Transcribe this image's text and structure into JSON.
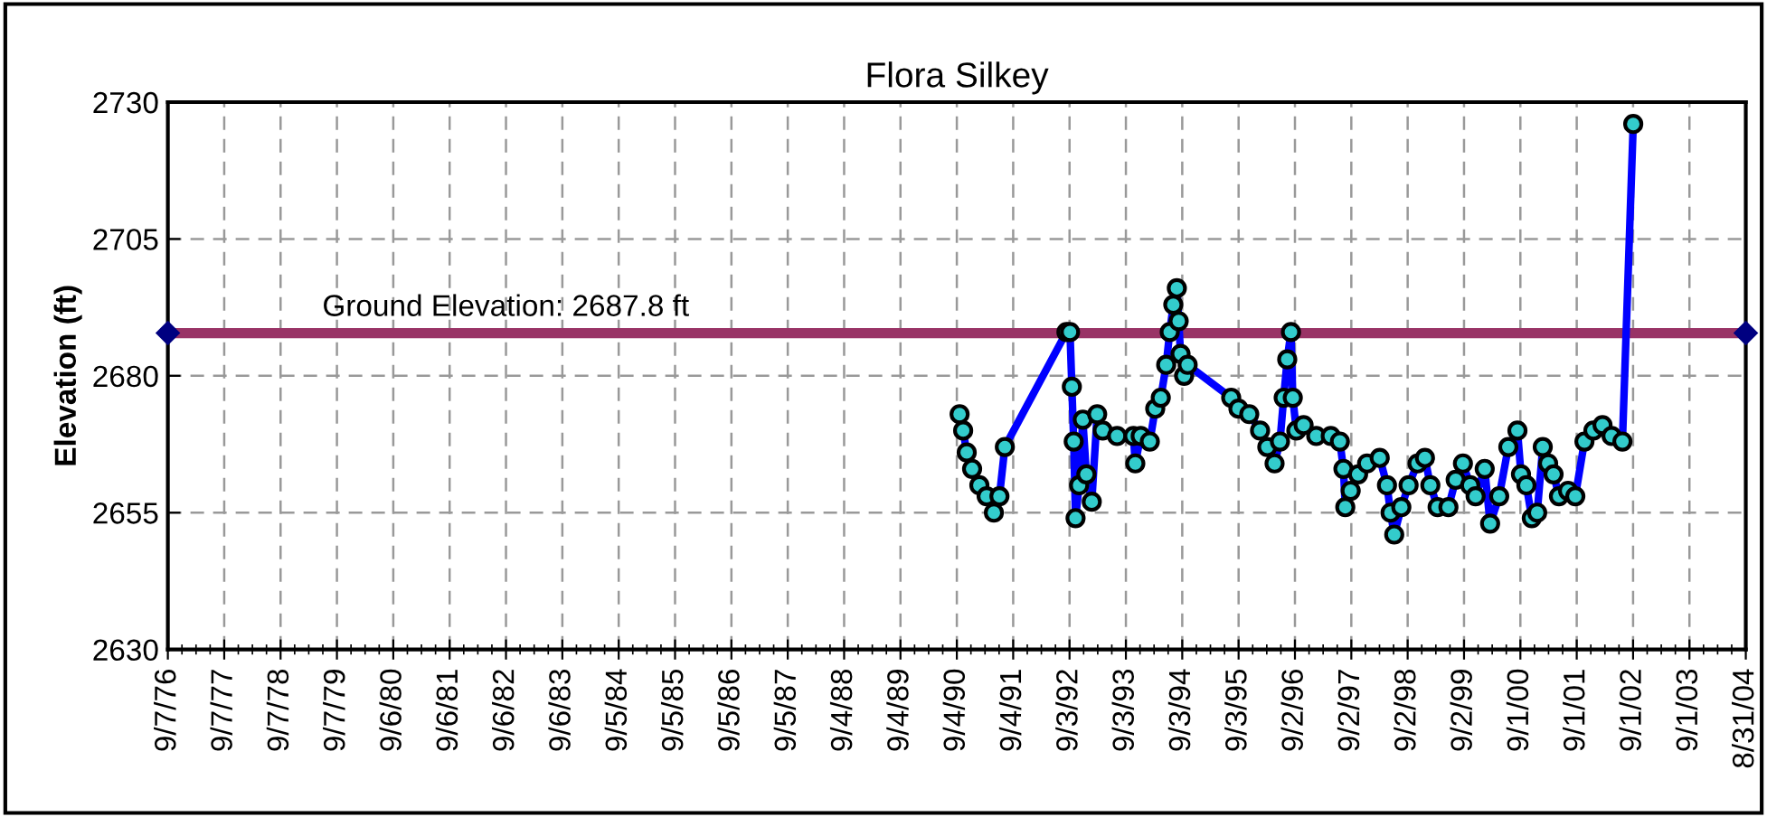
{
  "chart_data": {
    "type": "line",
    "title": "Flora Silkey",
    "ylabel": "Elevation (ft)",
    "xlim": [
      "1976-09-07",
      "2004-08-31"
    ],
    "ylim": [
      2630,
      2730
    ],
    "yticks": [
      2630,
      2655,
      2680,
      2705,
      2730
    ],
    "xticks": [
      {
        "value": "1976-09-07",
        "label": "9/7/76"
      },
      {
        "value": "1977-09-07",
        "label": "9/7/77"
      },
      {
        "value": "1978-09-07",
        "label": "9/7/78"
      },
      {
        "value": "1979-09-07",
        "label": "9/7/79"
      },
      {
        "value": "1980-09-06",
        "label": "9/6/80"
      },
      {
        "value": "1981-09-06",
        "label": "9/6/81"
      },
      {
        "value": "1982-09-06",
        "label": "9/6/82"
      },
      {
        "value": "1983-09-06",
        "label": "9/6/83"
      },
      {
        "value": "1984-09-05",
        "label": "9/5/84"
      },
      {
        "value": "1985-09-05",
        "label": "9/5/85"
      },
      {
        "value": "1986-09-05",
        "label": "9/5/86"
      },
      {
        "value": "1987-09-05",
        "label": "9/5/87"
      },
      {
        "value": "1988-09-04",
        "label": "9/4/88"
      },
      {
        "value": "1989-09-04",
        "label": "9/4/89"
      },
      {
        "value": "1990-09-04",
        "label": "9/4/90"
      },
      {
        "value": "1991-09-04",
        "label": "9/4/91"
      },
      {
        "value": "1992-09-03",
        "label": "9/3/92"
      },
      {
        "value": "1993-09-03",
        "label": "9/3/93"
      },
      {
        "value": "1994-09-03",
        "label": "9/3/94"
      },
      {
        "value": "1995-09-03",
        "label": "9/3/95"
      },
      {
        "value": "1996-09-02",
        "label": "9/2/96"
      },
      {
        "value": "1997-09-02",
        "label": "9/2/97"
      },
      {
        "value": "1998-09-02",
        "label": "9/2/98"
      },
      {
        "value": "1999-09-02",
        "label": "9/2/99"
      },
      {
        "value": "2000-09-01",
        "label": "9/1/00"
      },
      {
        "value": "2001-09-01",
        "label": "9/1/01"
      },
      {
        "value": "2002-09-01",
        "label": "9/1/02"
      },
      {
        "value": "2003-09-01",
        "label": "9/1/03"
      },
      {
        "value": "2004-08-31",
        "label": "8/31/04"
      }
    ],
    "grid": true,
    "series": [
      {
        "name": "Ground Elevation: 2687.8 ft",
        "color": "#993366",
        "marker": "diamond",
        "x": [
          "1976-09-07",
          "2004-08-31"
        ],
        "values": [
          2687.8,
          2687.8
        ]
      },
      {
        "color": "#0000ff",
        "marker": "circle",
        "x": [
          "1990-09-22",
          "1990-10-15",
          "1990-11-07",
          "1990-12-12",
          "1991-01-28",
          "1991-03-16",
          "1991-05-02",
          "1991-06-07",
          "1991-07-12",
          "1992-08-14",
          "1992-09-06",
          "1992-09-18",
          "1992-09-30",
          "1992-10-12",
          "1992-11-04",
          "1992-11-28",
          "1992-12-21",
          "1993-01-25",
          "1993-03-01",
          "1993-04-06",
          "1993-07-08",
          "1993-10-22",
          "1993-11-03",
          "1993-12-08",
          "1994-02-05",
          "1994-03-12",
          "1994-04-17",
          "1994-05-22",
          "1994-06-14",
          "1994-07-07",
          "1994-07-30",
          "1994-08-11",
          "1994-08-23",
          "1994-09-15",
          "1994-10-08",
          "1995-07-17",
          "1995-09-02",
          "1995-11-11",
          "1996-01-20",
          "1996-03-07",
          "1996-04-23",
          "1996-05-28",
          "1996-06-21",
          "1996-07-14",
          "1996-08-07",
          "1996-08-19",
          "1996-09-11",
          "1996-10-28",
          "1997-01-18",
          "1997-04-22",
          "1997-06-20",
          "1997-07-13",
          "1997-07-25",
          "1997-08-29",
          "1997-10-16",
          "1997-12-13",
          "1998-03-05",
          "1998-04-21",
          "1998-05-14",
          "1998-06-07",
          "1998-07-23",
          "1998-09-08",
          "1998-11-05",
          "1998-12-23",
          "1999-01-27",
          "1999-03-15",
          "1999-05-24",
          "1999-07-10",
          "1999-08-26",
          "1999-10-12",
          "1999-11-16",
          "2000-01-14",
          "2000-02-18",
          "2000-04-17",
          "2000-06-15",
          "2000-08-13",
          "2000-09-05",
          "2000-10-10",
          "2000-11-14",
          "2000-12-19",
          "2001-01-24",
          "2001-02-28",
          "2001-04-04",
          "2001-05-09",
          "2001-07-07",
          "2001-08-23",
          "2001-10-21",
          "2001-12-18",
          "2002-02-15",
          "2002-04-15",
          "2002-06-24",
          "2002-09-02"
        ],
        "values": [
          2673,
          2670,
          2666,
          2663,
          2660,
          2658,
          2655,
          2658,
          2667,
          2688,
          2688,
          2678,
          2668,
          2654,
          2660,
          2672,
          2662,
          2657,
          2673,
          2670,
          2669,
          2669,
          2664,
          2669,
          2668,
          2674,
          2676,
          2682,
          2688,
          2693,
          2696,
          2690,
          2684,
          2680,
          2682,
          2676,
          2674,
          2673,
          2670,
          2667,
          2664,
          2668,
          2676,
          2683,
          2688,
          2676,
          2670,
          2671,
          2669,
          2669,
          2668,
          2663,
          2656,
          2659,
          2662,
          2664,
          2665,
          2660,
          2655,
          2651,
          2656,
          2660,
          2664,
          2665,
          2660,
          2656,
          2656,
          2661,
          2664,
          2660,
          2658,
          2663,
          2653,
          2658,
          2667,
          2670,
          2662,
          2660,
          2654,
          2655,
          2667,
          2664,
          2662,
          2658,
          2659,
          2658,
          2668,
          2670,
          2671,
          2669,
          2668,
          2726
        ]
      }
    ]
  }
}
